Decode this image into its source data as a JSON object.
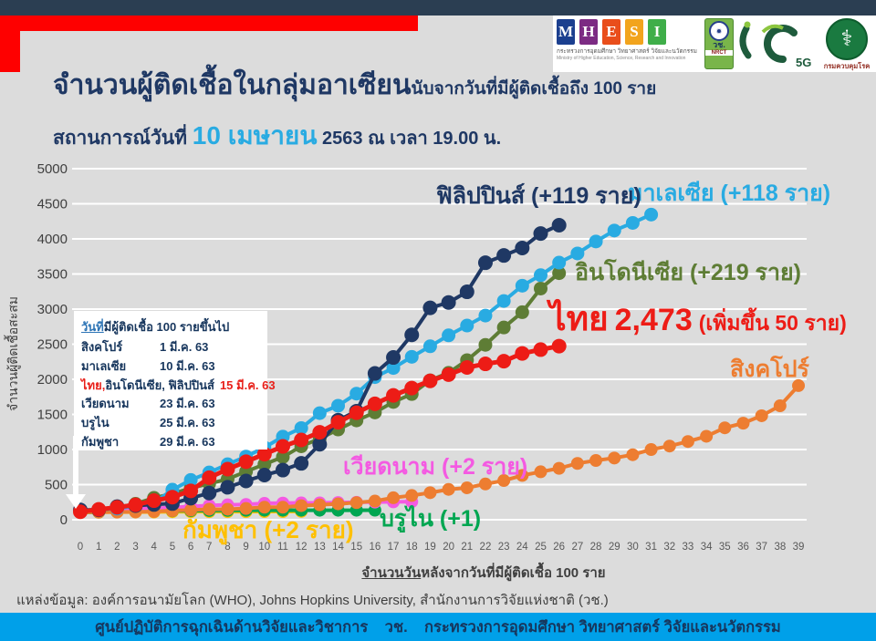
{
  "colors": {
    "top_bar": "#2b3e52",
    "accent_red": "#fe0000",
    "background": "#dcdcdc",
    "footer_bg": "#00a0e9",
    "title_navy": "#1f3864",
    "date_blue": "#29abe2",
    "gridline": "#ffffff"
  },
  "header": {
    "title_main": "จำนวนผู้ติดเชื้อในกลุ่มอาเซียน",
    "title_sub": "นับจากวันที่มีผู้ติดเชื้อถึง 100 ราย",
    "situation_prefix": "สถานการณ์วันที่ ",
    "situation_date": "10 เมษายน",
    "situation_suffix": " 2563 ณ เวลา 19.00 น."
  },
  "logos": {
    "mhesi": {
      "letters": [
        {
          "ch": "M",
          "color": "#1b3f8f"
        },
        {
          "ch": "H",
          "color": "#7c2b83"
        },
        {
          "ch": "E",
          "color": "#e94e1b"
        },
        {
          "ch": "S",
          "color": "#f2a41d"
        },
        {
          "ch": "I",
          "color": "#3fae49"
        }
      ],
      "thai_line": "กระทรวงการอุดมศึกษา วิทยาศาสตร์ วิจัยและนวัตกรรม",
      "eng_line": "Ministry of Higher Education, Science, Research and Innovation"
    },
    "nrct": {
      "emblem": "✹",
      "thai": "วช.",
      "eng": "NRCT"
    },
    "anniversary": {
      "label_5g": "5G"
    },
    "moph": {
      "symbol": "⚕",
      "label": "กรมควบคุมโรค"
    }
  },
  "legend": {
    "title_underlined": "วันที่",
    "title_rest": "มีผู้ติดเชื้อ 100 รายขึ้นไป",
    "rows": [
      {
        "country": "สิงคโปร์",
        "date": "1 มี.ค. 63"
      },
      {
        "country": "มาเลเซีย",
        "date": "10 มี.ค. 63"
      },
      {
        "country_red": "ไทย,",
        "country_rest": " อินโดนีเซีย, ฟิลิปปินส์",
        "date": "15 มี.ค. 63"
      },
      {
        "country": "เวียดนาม",
        "date": "23 มี.ค. 63"
      },
      {
        "country": "บรูไน",
        "date": "25 มี.ค. 63"
      },
      {
        "country": "กัมพูชา",
        "date": "29 มี.ค. 63"
      }
    ]
  },
  "chart_data": {
    "type": "line",
    "xlabel_underlined": "จำนวนวัน",
    "xlabel_rest": "หลังจากวันที่มีผู้ติดเชื้อ 100 ราย",
    "ylabel": "จำนวนผู้ติดเชื้อสะสม",
    "xlim": [
      0,
      39
    ],
    "ylim": [
      0,
      5000
    ],
    "x_tick_step": 1,
    "y_tick_step": 500,
    "grid": "horizontal",
    "series": [
      {
        "key": "cambodia",
        "name_th": "กัมพูชา",
        "color": "#ffc000",
        "annotation": "กัมพูชา (+2 ราย)",
        "line_width": 4,
        "dot_radius": 7,
        "values": [
          103,
          107,
          109,
          109,
          110,
          114,
          114,
          115,
          115,
          115,
          117,
          117,
          119
        ]
      },
      {
        "key": "brunei",
        "name_th": "บรูไน",
        "color": "#00a651",
        "annotation": "บรูไน (+1)",
        "line_width": 4,
        "dot_radius": 7,
        "values": [
          104,
          109,
          114,
          120,
          126,
          127,
          129,
          131,
          133,
          134,
          135,
          135,
          135,
          135,
          135,
          135,
          136
        ]
      },
      {
        "key": "vietnam",
        "name_th": "เวียดนาม",
        "color": "#f45ae2",
        "annotation": "เวียดนาม (+2 ราย)",
        "line_width": 4,
        "dot_radius": 7,
        "values": [
          123,
          134,
          141,
          153,
          163,
          174,
          188,
          203,
          212,
          218,
          233,
          237,
          240,
          241,
          245,
          249,
          251,
          255,
          257
        ]
      },
      {
        "key": "singapore",
        "name_th": "สิงคโปร์",
        "color": "#ed7d31",
        "annotation": "สิงคโปร์",
        "line_width": 4,
        "dot_radius": 7,
        "values": [
          106,
          108,
          110,
          112,
          117,
          130,
          138,
          150,
          150,
          160,
          178,
          178,
          200,
          212,
          226,
          243,
          266,
          313,
          345,
          385,
          432,
          455,
          509,
          558,
          631,
          683,
          732,
          802,
          844,
          879,
          926,
          1000,
          1049,
          1114,
          1189,
          1309,
          1375,
          1481,
          1623,
          1910
        ]
      },
      {
        "key": "indonesia",
        "name_th": "อินโดนีเซีย",
        "color": "#5e7d35",
        "annotation": "อินโดนีเซีย (+219 ราย)",
        "line_width": 4,
        "dot_radius": 7.5,
        "values": [
          117,
          134,
          172,
          227,
          311,
          369,
          450,
          514,
          579,
          686,
          790,
          893,
          1046,
          1155,
          1285,
          1414,
          1528,
          1677,
          1790,
          1986,
          2092,
          2273,
          2491,
          2738,
          2956,
          3293,
          3512
        ]
      },
      {
        "key": "malaysia",
        "name_th": "มาเลเซีย",
        "color": "#29abe2",
        "annotation": "มาเลเซีย (+118 ราย)",
        "line_width": 4,
        "dot_radius": 7.5,
        "values": [
          129,
          149,
          158,
          197,
          238,
          428,
          566,
          673,
          790,
          900,
          1030,
          1183,
          1306,
          1518,
          1624,
          1796,
          2031,
          2161,
          2320,
          2470,
          2626,
          2766,
          2908,
          3116,
          3333,
          3483,
          3662,
          3793,
          3963,
          4119,
          4228,
          4346
        ]
      },
      {
        "key": "philippines",
        "name_th": "ฟิลิปปินส์",
        "color": "#1f3864",
        "annotation": "ฟิลิปปินส์ (+119 ราย)",
        "line_width": 4,
        "dot_radius": 8,
        "values": [
          140,
          142,
          187,
          202,
          217,
          230,
          307,
          380,
          462,
          552,
          636,
          707,
          803,
          1075,
          1418,
          1546,
          2084,
          2311,
          2633,
          3018,
          3094,
          3246,
          3660,
          3764,
          3870,
          4076,
          4195
        ]
      },
      {
        "key": "thailand",
        "name_th": "ไทย",
        "color": "#ed1c16",
        "annotation_parts": {
          "name": "ไทย",
          "value": "2,473",
          "delta": "(เพิ่มขึ้น 50 ราย)"
        },
        "line_width": 5,
        "dot_radius": 8,
        "values": [
          114,
          147,
          177,
          212,
          272,
          322,
          411,
          599,
          721,
          827,
          934,
          1045,
          1136,
          1245,
          1388,
          1524,
          1651,
          1771,
          1875,
          1978,
          2067,
          2169,
          2220,
          2258,
          2369,
          2423,
          2473
        ]
      }
    ]
  },
  "source_line": "แหล่งข้อมูล: องค์การอนามัยโลก (WHO), Johns Hopkins University, สำนักงานการวิจัยแห่งชาติ (วช.)",
  "footer": {
    "text": "ศูนย์ปฏิบัติการฉุกเฉินด้านวิจัยและวิชาการ    วช.    กระทรวงการอุดมศึกษา วิทยาศาสตร์ วิจัยและนวัตกรรม"
  }
}
